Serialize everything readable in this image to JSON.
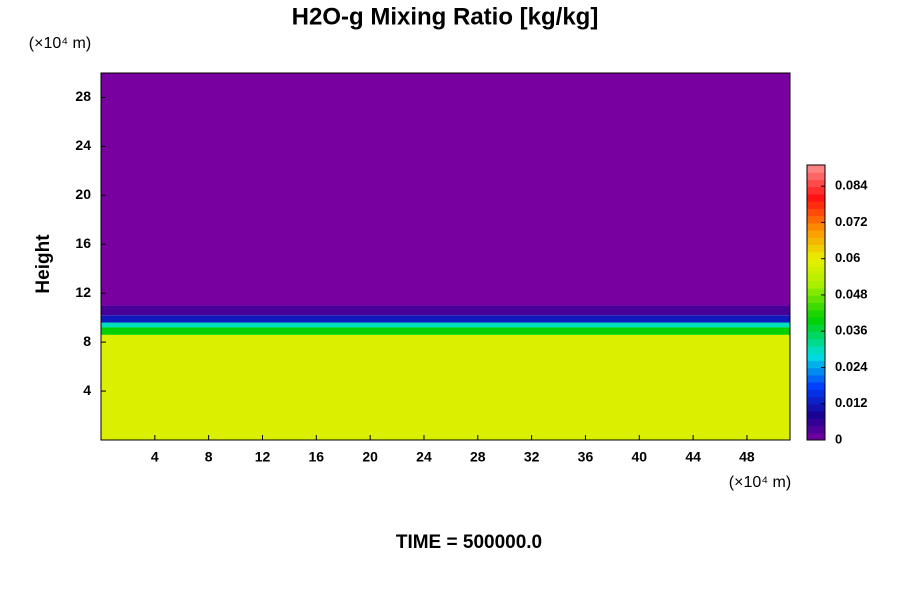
{
  "chart_data": {
    "type": "heatmap",
    "title": "H2O-g Mixing Ratio [kg/kg]",
    "y_label": "Height",
    "x_unit": "(×10⁴ m)",
    "y_unit": "(×10⁴ m)",
    "footer": "TIME = 500000.0",
    "xlim": [
      0,
      51.2
    ],
    "xticks": [
      4,
      8,
      12,
      16,
      20,
      24,
      28,
      32,
      36,
      40,
      44,
      48
    ],
    "ylim": [
      0,
      30
    ],
    "yticks": [
      4,
      8,
      12,
      16,
      20,
      24,
      28
    ],
    "level_edges": [
      0,
      8.6,
      9.2,
      9.6,
      10.2,
      11,
      30
    ],
    "values": [
      0.058,
      0.04,
      0.03,
      0.012,
      0.004,
      0
    ],
    "colorbar_lim": [
      0,
      0.091
    ],
    "colorbar_ticks": [
      0,
      0.012,
      0.024,
      0.036,
      0.048,
      0.06,
      0.072,
      0.084
    ],
    "colormap": [
      [
        0,
        "#7800a0"
      ],
      [
        0.008,
        "#1a0090"
      ],
      [
        0.018,
        "#0040ff"
      ],
      [
        0.028,
        "#00e0e0"
      ],
      [
        0.04,
        "#00d000"
      ],
      [
        0.052,
        "#b0f000"
      ],
      [
        0.06,
        "#e8f000"
      ],
      [
        0.07,
        "#ff9000"
      ],
      [
        0.08,
        "#ff1010"
      ],
      [
        0.091,
        "#ff9090"
      ]
    ]
  }
}
